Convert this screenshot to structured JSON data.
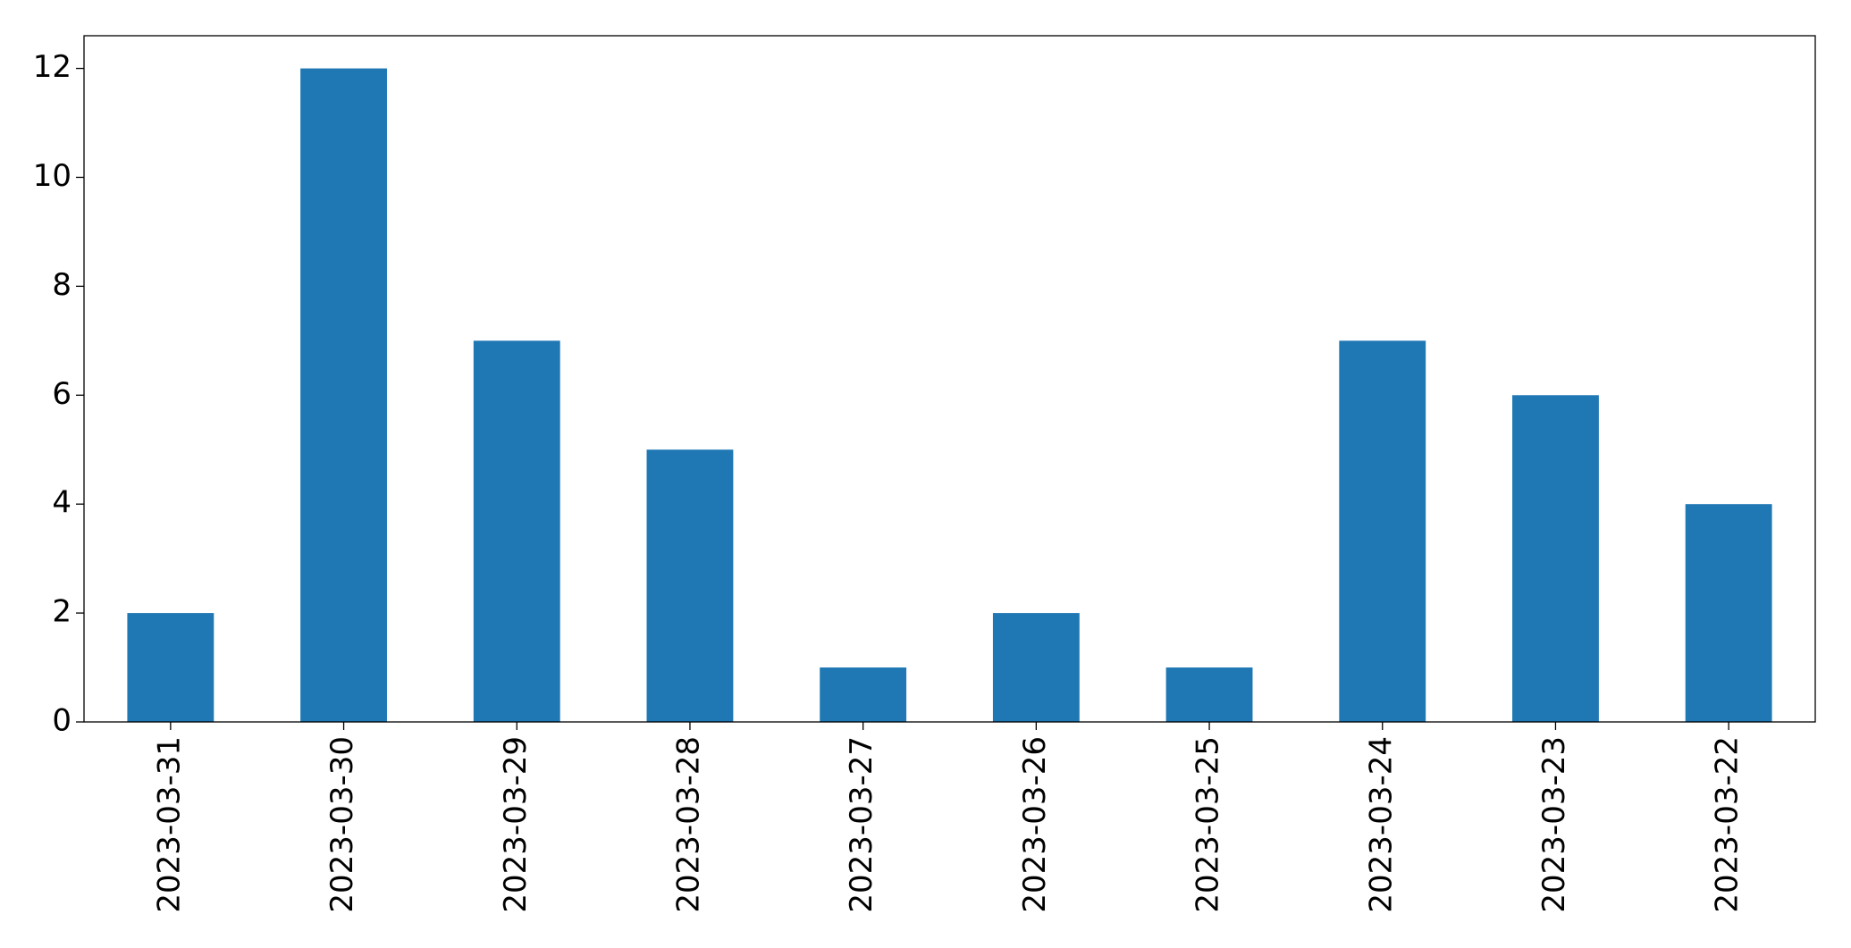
{
  "chart_data": {
    "type": "bar",
    "categories": [
      "2023-03-31",
      "2023-03-30",
      "2023-03-29",
      "2023-03-28",
      "2023-03-27",
      "2023-03-26",
      "2023-03-25",
      "2023-03-24",
      "2023-03-23",
      "2023-03-22"
    ],
    "values": [
      2,
      12,
      7,
      5,
      1,
      2,
      1,
      7,
      6,
      4
    ],
    "color": "#1f77b4",
    "ylim": [
      0,
      12.6
    ],
    "yticks": [
      0,
      2,
      4,
      6,
      8,
      10,
      12
    ],
    "grid": false
  }
}
